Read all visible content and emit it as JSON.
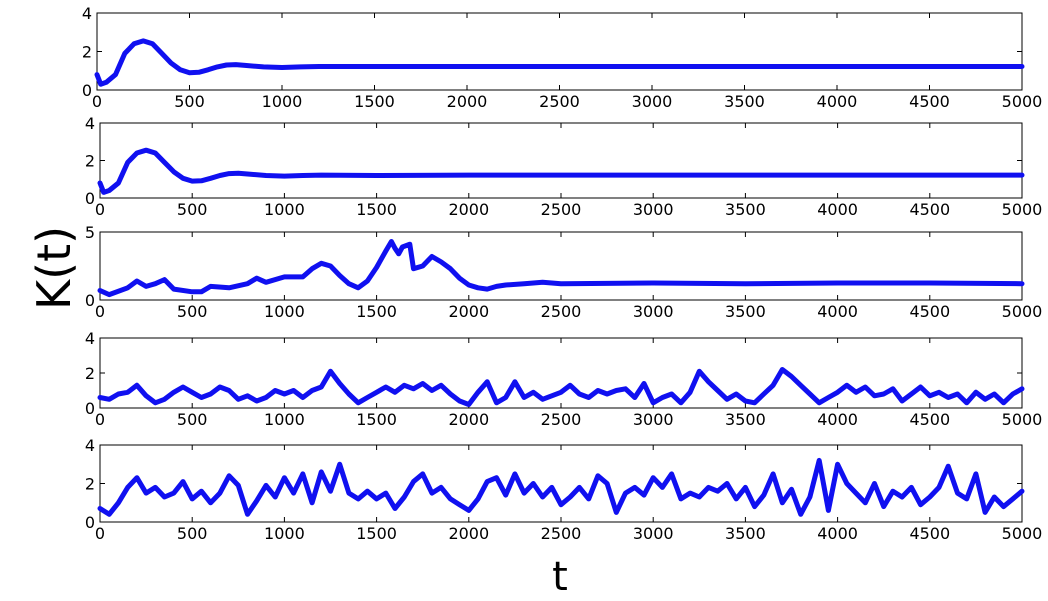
{
  "chart_data": {
    "type": "line",
    "ylabel": "K(t)",
    "xlabel": "t",
    "series_color": "#1010f0",
    "x_ticks": [
      0,
      500,
      1000,
      1500,
      2000,
      2500,
      3000,
      3500,
      4000,
      4500,
      5000
    ],
    "panels": [
      {
        "xlim": [
          0,
          5000
        ],
        "ylim": [
          0,
          4
        ],
        "y_ticks": [
          0,
          2,
          4
        ],
        "x": [
          0,
          20,
          50,
          100,
          150,
          200,
          250,
          300,
          350,
          400,
          450,
          500,
          550,
          600,
          650,
          700,
          750,
          800,
          900,
          1000,
          1100,
          1200,
          1500,
          2000,
          3000,
          4000,
          5000
        ],
        "y": [
          0.8,
          0.3,
          0.4,
          0.8,
          1.9,
          2.4,
          2.55,
          2.4,
          1.9,
          1.4,
          1.05,
          0.9,
          0.92,
          1.05,
          1.2,
          1.3,
          1.32,
          1.28,
          1.2,
          1.17,
          1.2,
          1.22,
          1.22,
          1.22,
          1.22,
          1.22,
          1.22
        ]
      },
      {
        "xlim": [
          0,
          5000
        ],
        "ylim": [
          0,
          4
        ],
        "y_ticks": [
          0,
          2,
          4
        ],
        "x": [
          0,
          20,
          50,
          100,
          150,
          200,
          250,
          300,
          350,
          400,
          450,
          500,
          550,
          600,
          650,
          700,
          750,
          800,
          900,
          1000,
          1100,
          1200,
          1500,
          2000,
          3000,
          4000,
          5000
        ],
        "y": [
          0.8,
          0.3,
          0.4,
          0.8,
          1.9,
          2.4,
          2.55,
          2.4,
          1.9,
          1.4,
          1.05,
          0.9,
          0.92,
          1.05,
          1.2,
          1.3,
          1.32,
          1.28,
          1.2,
          1.17,
          1.2,
          1.22,
          1.2,
          1.22,
          1.22,
          1.22,
          1.22
        ]
      },
      {
        "xlim": [
          0,
          5000
        ],
        "ylim": [
          0,
          5
        ],
        "y_ticks": [
          0,
          5
        ],
        "x": [
          0,
          50,
          150,
          200,
          250,
          300,
          350,
          400,
          500,
          550,
          600,
          700,
          800,
          850,
          900,
          1000,
          1100,
          1150,
          1200,
          1250,
          1300,
          1350,
          1400,
          1450,
          1500,
          1550,
          1580,
          1600,
          1620,
          1640,
          1660,
          1680,
          1700,
          1750,
          1800,
          1850,
          1900,
          1950,
          2000,
          2050,
          2100,
          2150,
          2200,
          2300,
          2400,
          2500,
          3000,
          3500,
          4000,
          4500,
          5000
        ],
        "y": [
          0.7,
          0.4,
          0.9,
          1.4,
          1.0,
          1.2,
          1.5,
          0.8,
          0.6,
          0.6,
          1.0,
          0.9,
          1.2,
          1.6,
          1.3,
          1.7,
          1.7,
          2.3,
          2.7,
          2.5,
          1.8,
          1.2,
          0.9,
          1.4,
          2.4,
          3.6,
          4.3,
          3.8,
          3.4,
          3.9,
          4.0,
          4.1,
          2.3,
          2.5,
          3.2,
          2.8,
          2.3,
          1.6,
          1.1,
          0.9,
          0.8,
          1.0,
          1.1,
          1.2,
          1.3,
          1.2,
          1.25,
          1.2,
          1.25,
          1.25,
          1.2
        ]
      },
      {
        "xlim": [
          0,
          5000
        ],
        "ylim": [
          0,
          4
        ],
        "y_ticks": [
          0,
          2,
          4
        ],
        "x": [
          0,
          50,
          100,
          150,
          200,
          250,
          300,
          350,
          400,
          450,
          500,
          550,
          600,
          650,
          700,
          750,
          800,
          850,
          900,
          950,
          1000,
          1050,
          1100,
          1150,
          1200,
          1250,
          1300,
          1350,
          1400,
          1450,
          1500,
          1550,
          1600,
          1650,
          1700,
          1750,
          1800,
          1850,
          1900,
          1950,
          2000,
          2050,
          2100,
          2150,
          2200,
          2250,
          2300,
          2350,
          2400,
          2450,
          2500,
          2550,
          2600,
          2650,
          2700,
          2750,
          2800,
          2850,
          2900,
          2950,
          3000,
          3050,
          3100,
          3150,
          3200,
          3250,
          3300,
          3350,
          3400,
          3450,
          3500,
          3550,
          3600,
          3650,
          3700,
          3750,
          3800,
          3850,
          3900,
          3950,
          4000,
          4050,
          4100,
          4150,
          4200,
          4250,
          4300,
          4350,
          4400,
          4450,
          4500,
          4550,
          4600,
          4650,
          4700,
          4750,
          4800,
          4850,
          4900,
          4950,
          5000
        ],
        "y": [
          0.6,
          0.5,
          0.8,
          0.9,
          1.3,
          0.7,
          0.3,
          0.5,
          0.9,
          1.2,
          0.9,
          0.6,
          0.8,
          1.2,
          1.0,
          0.5,
          0.7,
          0.4,
          0.6,
          1.0,
          0.8,
          1.0,
          0.6,
          1.0,
          1.2,
          2.1,
          1.4,
          0.8,
          0.3,
          0.6,
          0.9,
          1.2,
          0.9,
          1.3,
          1.1,
          1.4,
          1.0,
          1.3,
          0.8,
          0.4,
          0.2,
          0.9,
          1.5,
          0.3,
          0.6,
          1.5,
          0.6,
          0.9,
          0.5,
          0.7,
          0.9,
          1.3,
          0.8,
          0.6,
          1.0,
          0.8,
          1.0,
          1.1,
          0.6,
          1.4,
          0.3,
          0.6,
          0.8,
          0.3,
          0.9,
          2.1,
          1.5,
          1.0,
          0.5,
          0.8,
          0.4,
          0.3,
          0.8,
          1.3,
          2.2,
          1.8,
          1.3,
          0.8,
          0.3,
          0.6,
          0.9,
          1.3,
          0.9,
          1.2,
          0.7,
          0.8,
          1.1,
          0.4,
          0.8,
          1.2,
          0.7,
          0.9,
          0.6,
          0.8,
          0.3,
          0.9,
          0.5,
          0.8,
          0.3,
          0.8,
          1.1
        ]
      },
      {
        "xlim": [
          0,
          5000
        ],
        "ylim": [
          0,
          4
        ],
        "y_ticks": [
          0,
          2,
          4
        ],
        "x": [
          0,
          50,
          100,
          150,
          200,
          250,
          300,
          350,
          400,
          450,
          500,
          550,
          600,
          650,
          700,
          750,
          800,
          850,
          900,
          950,
          1000,
          1050,
          1100,
          1150,
          1200,
          1250,
          1300,
          1350,
          1400,
          1450,
          1500,
          1550,
          1600,
          1650,
          1700,
          1750,
          1800,
          1850,
          1900,
          1950,
          2000,
          2050,
          2100,
          2150,
          2200,
          2250,
          2300,
          2350,
          2400,
          2450,
          2500,
          2550,
          2600,
          2650,
          2700,
          2750,
          2800,
          2850,
          2900,
          2950,
          3000,
          3050,
          3100,
          3150,
          3200,
          3250,
          3300,
          3350,
          3400,
          3450,
          3500,
          3550,
          3600,
          3650,
          3700,
          3750,
          3800,
          3850,
          3900,
          3950,
          4000,
          4050,
          4100,
          4150,
          4200,
          4250,
          4300,
          4350,
          4400,
          4450,
          4500,
          4550,
          4600,
          4650,
          4700,
          4750,
          4800,
          4850,
          4900,
          4950,
          5000
        ],
        "y": [
          0.7,
          0.4,
          1.0,
          1.8,
          2.3,
          1.5,
          1.8,
          1.3,
          1.5,
          2.1,
          1.2,
          1.6,
          1.0,
          1.5,
          2.4,
          1.9,
          0.4,
          1.1,
          1.9,
          1.3,
          2.3,
          1.5,
          2.5,
          1.0,
          2.6,
          1.6,
          3.0,
          1.5,
          1.2,
          1.6,
          1.2,
          1.5,
          0.7,
          1.3,
          2.1,
          2.5,
          1.5,
          1.8,
          1.2,
          0.9,
          0.6,
          1.2,
          2.1,
          2.3,
          1.4,
          2.5,
          1.5,
          2.0,
          1.3,
          1.8,
          0.9,
          1.3,
          1.8,
          1.2,
          2.4,
          2.0,
          0.5,
          1.5,
          1.8,
          1.4,
          2.3,
          1.8,
          2.5,
          1.2,
          1.5,
          1.3,
          1.8,
          1.6,
          2.0,
          1.2,
          1.8,
          0.8,
          1.4,
          2.5,
          1.0,
          1.7,
          0.4,
          1.3,
          3.2,
          0.6,
          3.0,
          2.0,
          1.5,
          1.0,
          2.0,
          0.8,
          1.6,
          1.3,
          1.8,
          0.9,
          1.3,
          1.8,
          2.9,
          1.5,
          1.2,
          2.5,
          0.5,
          1.3,
          0.8,
          1.2,
          1.6
        ]
      }
    ]
  }
}
